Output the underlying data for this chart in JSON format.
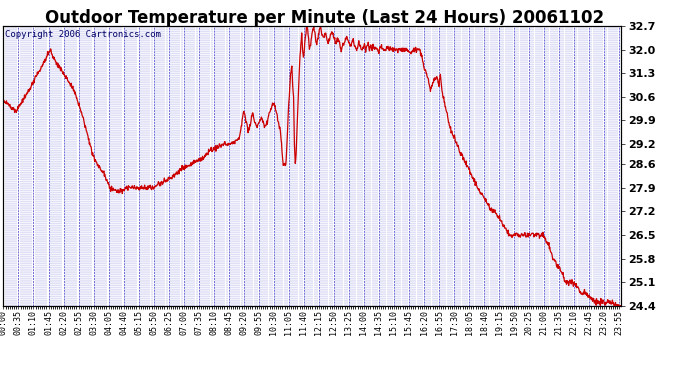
{
  "title": "Outdoor Temperature per Minute (Last 24 Hours) 20061102",
  "copyright": "Copyright 2006 Cartronics.com",
  "ymin": 24.4,
  "ymax": 32.7,
  "yticks": [
    24.4,
    25.1,
    25.8,
    26.5,
    27.2,
    27.9,
    28.6,
    29.2,
    29.9,
    30.6,
    31.3,
    32.0,
    32.7
  ],
  "line_color": "#cc0000",
  "plot_bg": "#ffffff",
  "grid_color_major": "#0000cc",
  "grid_color_minor": "#4444ff",
  "title_fontsize": 12,
  "copyright_fontsize": 6.5,
  "ytick_fontsize": 8,
  "xtick_fontsize": 6,
  "tick_step_min": 35,
  "keypoints": [
    [
      0,
      30.5
    ],
    [
      20,
      30.3
    ],
    [
      30,
      30.2
    ],
    [
      45,
      30.5
    ],
    [
      60,
      30.8
    ],
    [
      75,
      31.2
    ],
    [
      90,
      31.5
    ],
    [
      100,
      31.8
    ],
    [
      110,
      32.0
    ],
    [
      115,
      31.8
    ],
    [
      120,
      31.7
    ],
    [
      130,
      31.5
    ],
    [
      140,
      31.3
    ],
    [
      155,
      31.0
    ],
    [
      165,
      30.8
    ],
    [
      175,
      30.4
    ],
    [
      185,
      30.0
    ],
    [
      195,
      29.5
    ],
    [
      205,
      29.0
    ],
    [
      215,
      28.7
    ],
    [
      225,
      28.5
    ],
    [
      235,
      28.3
    ],
    [
      245,
      28.0
    ],
    [
      255,
      27.85
    ],
    [
      265,
      27.8
    ],
    [
      270,
      27.8
    ],
    [
      280,
      27.85
    ],
    [
      290,
      27.9
    ],
    [
      300,
      27.9
    ],
    [
      315,
      27.9
    ],
    [
      330,
      27.9
    ],
    [
      340,
      27.9
    ],
    [
      350,
      27.9
    ],
    [
      360,
      28.0
    ],
    [
      375,
      28.1
    ],
    [
      390,
      28.2
    ],
    [
      400,
      28.3
    ],
    [
      420,
      28.5
    ],
    [
      435,
      28.6
    ],
    [
      450,
      28.7
    ],
    [
      465,
      28.8
    ],
    [
      480,
      29.0
    ],
    [
      495,
      29.1
    ],
    [
      510,
      29.2
    ],
    [
      525,
      29.2
    ],
    [
      540,
      29.3
    ],
    [
      550,
      29.4
    ],
    [
      555,
      29.8
    ],
    [
      560,
      30.2
    ],
    [
      565,
      29.9
    ],
    [
      570,
      29.6
    ],
    [
      575,
      29.8
    ],
    [
      580,
      30.1
    ],
    [
      585,
      29.9
    ],
    [
      590,
      29.7
    ],
    [
      595,
      29.8
    ],
    [
      600,
      30.0
    ],
    [
      605,
      29.9
    ],
    [
      610,
      29.7
    ],
    [
      615,
      29.9
    ],
    [
      620,
      30.1
    ],
    [
      625,
      30.3
    ],
    [
      630,
      30.4
    ],
    [
      635,
      30.2
    ],
    [
      640,
      29.9
    ],
    [
      645,
      29.6
    ],
    [
      648,
      29.2
    ],
    [
      650,
      28.8
    ],
    [
      652,
      28.6
    ],
    [
      655,
      28.6
    ],
    [
      658,
      28.6
    ],
    [
      660,
      29.0
    ],
    [
      663,
      29.9
    ],
    [
      666,
      30.6
    ],
    [
      669,
      31.3
    ],
    [
      672,
      31.5
    ],
    [
      674,
      31.0
    ],
    [
      676,
      30.6
    ],
    [
      678,
      29.2
    ],
    [
      680,
      28.6
    ],
    [
      682,
      28.9
    ],
    [
      685,
      30.0
    ],
    [
      688,
      31.0
    ],
    [
      691,
      31.8
    ],
    [
      693,
      32.2
    ],
    [
      695,
      32.4
    ],
    [
      697,
      32.0
    ],
    [
      699,
      31.7
    ],
    [
      701,
      32.0
    ],
    [
      703,
      32.3
    ],
    [
      705,
      32.5
    ],
    [
      707,
      32.7
    ],
    [
      710,
      32.5
    ],
    [
      713,
      32.0
    ],
    [
      716,
      32.2
    ],
    [
      719,
      32.5
    ],
    [
      722,
      32.7
    ],
    [
      725,
      32.5
    ],
    [
      728,
      32.3
    ],
    [
      730,
      32.2
    ],
    [
      733,
      32.4
    ],
    [
      736,
      32.6
    ],
    [
      739,
      32.7
    ],
    [
      742,
      32.5
    ],
    [
      745,
      32.3
    ],
    [
      748,
      32.4
    ],
    [
      751,
      32.5
    ],
    [
      754,
      32.3
    ],
    [
      757,
      32.2
    ],
    [
      760,
      32.3
    ],
    [
      763,
      32.5
    ],
    [
      766,
      32.5
    ],
    [
      769,
      32.4
    ],
    [
      772,
      32.3
    ],
    [
      775,
      32.2
    ],
    [
      778,
      32.3
    ],
    [
      781,
      32.3
    ],
    [
      784,
      32.2
    ],
    [
      787,
      32.0
    ],
    [
      790,
      32.1
    ],
    [
      793,
      32.2
    ],
    [
      796,
      32.3
    ],
    [
      799,
      32.4
    ],
    [
      802,
      32.3
    ],
    [
      805,
      32.2
    ],
    [
      808,
      32.1
    ],
    [
      811,
      32.2
    ],
    [
      814,
      32.3
    ],
    [
      817,
      32.2
    ],
    [
      820,
      32.1
    ],
    [
      823,
      32.0
    ],
    [
      826,
      32.1
    ],
    [
      829,
      32.2
    ],
    [
      832,
      32.1
    ],
    [
      835,
      32.0
    ],
    [
      838,
      32.1
    ],
    [
      841,
      32.2
    ],
    [
      844,
      32.0
    ],
    [
      847,
      32.1
    ],
    [
      850,
      32.2
    ],
    [
      853,
      32.0
    ],
    [
      856,
      32.1
    ],
    [
      859,
      32.0
    ],
    [
      862,
      32.1
    ],
    [
      865,
      32.0
    ],
    [
      868,
      32.1
    ],
    [
      871,
      32.0
    ],
    [
      874,
      31.9
    ],
    [
      877,
      32.0
    ],
    [
      880,
      32.1
    ],
    [
      885,
      32.0
    ],
    [
      890,
      32.0
    ],
    [
      895,
      32.1
    ],
    [
      900,
      32.0
    ],
    [
      910,
      32.0
    ],
    [
      920,
      32.0
    ],
    [
      930,
      32.0
    ],
    [
      940,
      32.0
    ],
    [
      950,
      31.9
    ],
    [
      960,
      32.0
    ],
    [
      970,
      32.0
    ],
    [
      975,
      31.8
    ],
    [
      980,
      31.5
    ],
    [
      985,
      31.3
    ],
    [
      990,
      31.1
    ],
    [
      995,
      30.8
    ],
    [
      1000,
      31.0
    ],
    [
      1005,
      31.1
    ],
    [
      1010,
      31.2
    ],
    [
      1015,
      31.0
    ],
    [
      1018,
      31.3
    ],
    [
      1020,
      31.0
    ],
    [
      1025,
      30.6
    ],
    [
      1030,
      30.3
    ],
    [
      1035,
      30.0
    ],
    [
      1040,
      29.7
    ],
    [
      1050,
      29.4
    ],
    [
      1060,
      29.1
    ],
    [
      1070,
      28.8
    ],
    [
      1080,
      28.6
    ],
    [
      1090,
      28.3
    ],
    [
      1100,
      28.0
    ],
    [
      1110,
      27.8
    ],
    [
      1120,
      27.6
    ],
    [
      1130,
      27.4
    ],
    [
      1140,
      27.2
    ],
    [
      1150,
      27.1
    ],
    [
      1155,
      27.0
    ],
    [
      1160,
      26.9
    ],
    [
      1165,
      26.8
    ],
    [
      1170,
      26.7
    ],
    [
      1175,
      26.6
    ],
    [
      1180,
      26.5
    ],
    [
      1190,
      26.5
    ],
    [
      1200,
      26.5
    ],
    [
      1210,
      26.5
    ],
    [
      1215,
      26.5
    ],
    [
      1220,
      26.5
    ],
    [
      1230,
      26.5
    ],
    [
      1240,
      26.5
    ],
    [
      1250,
      26.5
    ],
    [
      1255,
      26.5
    ],
    [
      1258,
      26.5
    ],
    [
      1262,
      26.4
    ],
    [
      1265,
      26.3
    ],
    [
      1270,
      26.2
    ],
    [
      1275,
      26.0
    ],
    [
      1280,
      25.8
    ],
    [
      1285,
      25.7
    ],
    [
      1290,
      25.6
    ],
    [
      1295,
      25.5
    ],
    [
      1300,
      25.4
    ],
    [
      1305,
      25.3
    ],
    [
      1308,
      25.1
    ],
    [
      1310,
      25.1
    ],
    [
      1315,
      25.1
    ],
    [
      1320,
      25.1
    ],
    [
      1325,
      25.1
    ],
    [
      1330,
      25.0
    ],
    [
      1335,
      25.0
    ],
    [
      1340,
      24.9
    ],
    [
      1345,
      24.8
    ],
    [
      1350,
      24.8
    ],
    [
      1355,
      24.8
    ],
    [
      1360,
      24.7
    ],
    [
      1365,
      24.7
    ],
    [
      1370,
      24.6
    ],
    [
      1375,
      24.6
    ],
    [
      1380,
      24.5
    ],
    [
      1385,
      24.5
    ],
    [
      1390,
      24.5
    ],
    [
      1395,
      24.5
    ],
    [
      1400,
      24.5
    ],
    [
      1405,
      24.5
    ],
    [
      1410,
      24.5
    ],
    [
      1415,
      24.5
    ],
    [
      1420,
      24.5
    ],
    [
      1425,
      24.4
    ],
    [
      1430,
      24.4
    ],
    [
      1435,
      24.4
    ],
    [
      1439,
      24.4
    ]
  ]
}
